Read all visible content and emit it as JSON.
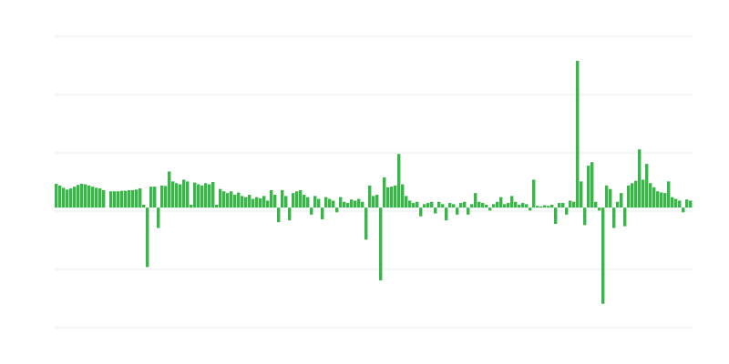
{
  "chart_data": {
    "type": "bar",
    "title": "",
    "xlabel": "",
    "ylabel": "",
    "grid": true,
    "legend": "none",
    "bar_color": "#3ab54a",
    "grid_color": "#ebebeb",
    "ylim": [
      -2.06,
      2.94
    ],
    "values": [
      0.41,
      0.38,
      0.34,
      0.31,
      0.33,
      0.36,
      0.39,
      0.41,
      0.4,
      0.38,
      0.36,
      0.34,
      0.33,
      0.3,
      0.0,
      0.28,
      0.28,
      0.28,
      0.29,
      0.29,
      0.3,
      0.3,
      0.31,
      0.33,
      0.05,
      -1.02,
      0.36,
      0.36,
      -0.35,
      0.38,
      0.37,
      0.62,
      0.45,
      0.42,
      0.4,
      0.48,
      0.45,
      0.05,
      0.43,
      0.4,
      0.38,
      0.42,
      0.4,
      0.44,
      0.05,
      0.32,
      0.28,
      0.25,
      0.28,
      0.22,
      0.26,
      0.2,
      0.18,
      0.22,
      0.15,
      0.18,
      0.16,
      0.2,
      0.12,
      0.3,
      0.22,
      -0.25,
      0.3,
      0.2,
      -0.22,
      0.25,
      0.28,
      0.3,
      0.22,
      0.18,
      -0.12,
      0.2,
      0.15,
      -0.2,
      0.18,
      0.15,
      0.12,
      -0.08,
      0.18,
      0.1,
      0.08,
      0.14,
      0.12,
      0.15,
      0.1,
      -0.55,
      0.38,
      0.2,
      0.22,
      -1.25,
      0.52,
      0.35,
      0.36,
      0.38,
      0.92,
      0.4,
      0.2,
      0.12,
      0.08,
      0.1,
      -0.15,
      0.06,
      0.08,
      0.1,
      -0.1,
      0.1,
      0.06,
      -0.22,
      0.08,
      0.06,
      -0.12,
      0.08,
      0.1,
      -0.12,
      0.06,
      0.25,
      0.1,
      0.08,
      0.05,
      -0.05,
      0.06,
      0.1,
      0.18,
      0.06,
      0.08,
      0.2,
      0.1,
      0.05,
      0.08,
      0.06,
      -0.05,
      0.48,
      0.03,
      0.02,
      0.04,
      0.03,
      0.05,
      -0.28,
      0.08,
      0.08,
      -0.12,
      0.12,
      0.1,
      2.52,
      0.45,
      -0.3,
      0.72,
      0.78,
      0.1,
      -0.05,
      -1.65,
      0.38,
      0.32,
      -0.35,
      0.1,
      0.25,
      -0.32,
      0.38,
      0.42,
      0.46,
      1.0,
      0.48,
      0.75,
      0.42,
      0.35,
      0.28,
      0.26,
      0.25,
      0.45,
      0.18,
      0.15,
      0.12,
      -0.08,
      0.14,
      0.12
    ]
  }
}
